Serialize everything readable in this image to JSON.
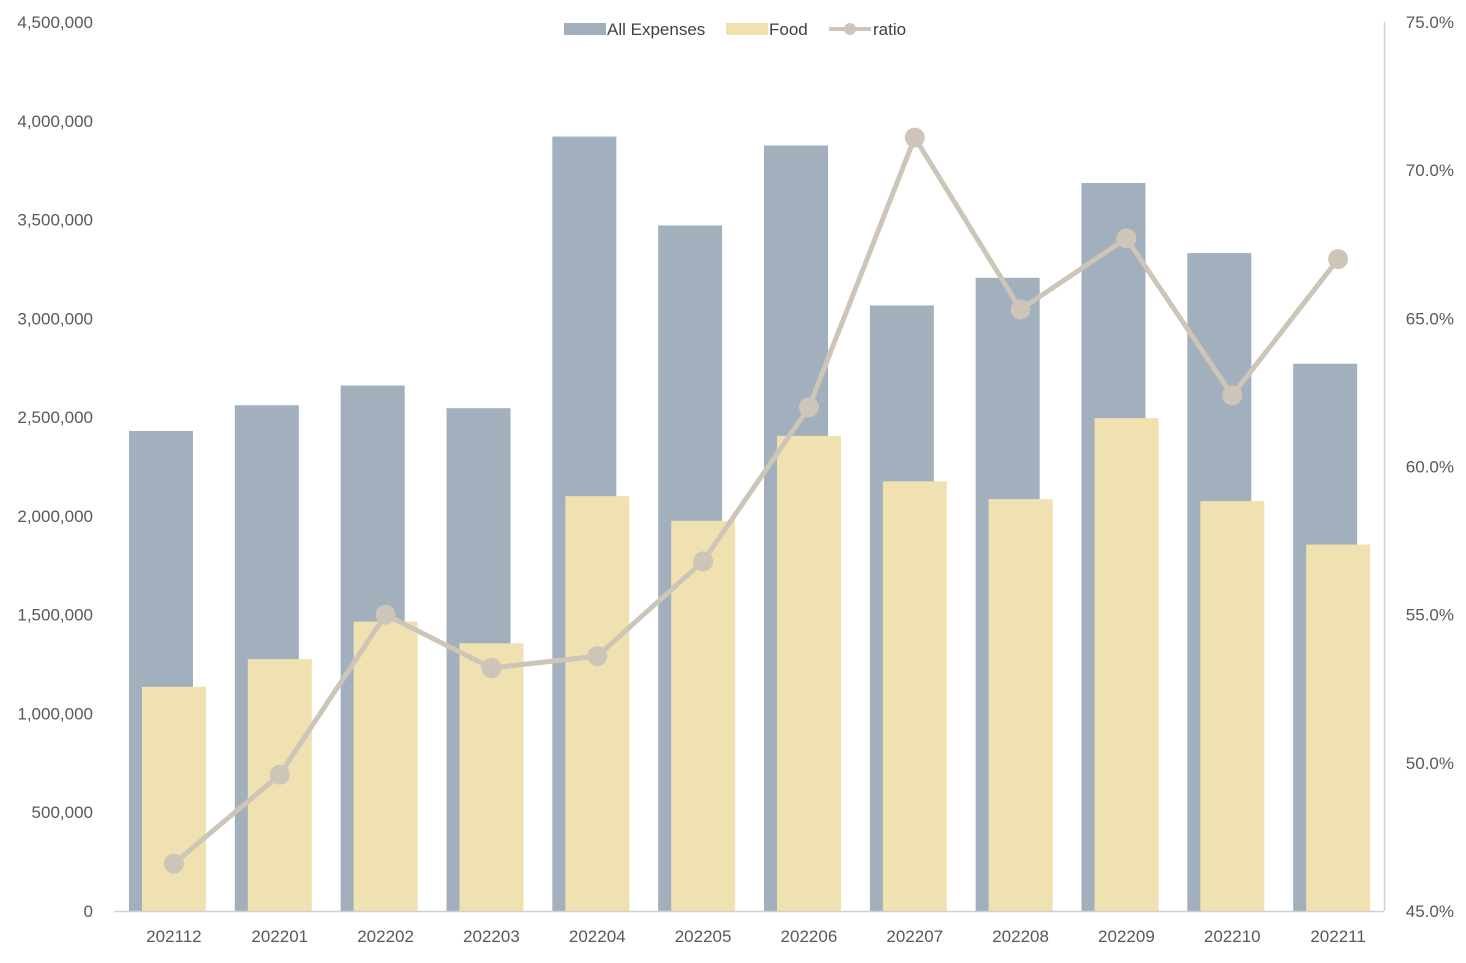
{
  "chart_data": {
    "type": "bar",
    "categories": [
      "202112",
      "202201",
      "202202",
      "202203",
      "202204",
      "202205",
      "202206",
      "202207",
      "202208",
      "202209",
      "202210",
      "202211"
    ],
    "series": [
      {
        "name": "All Expenses",
        "type": "bar",
        "axis": "left",
        "color": "#a2afbd",
        "values": [
          2430000,
          2560000,
          2660000,
          2545000,
          3920000,
          3470000,
          3875000,
          3065000,
          3205000,
          3685000,
          3330000,
          2770000
        ]
      },
      {
        "name": "Food",
        "type": "bar",
        "axis": "left",
        "color": "#efe1b0",
        "values": [
          1135000,
          1275000,
          1465000,
          1355000,
          2100000,
          1975000,
          2405000,
          2175000,
          2085000,
          2495000,
          2075000,
          1855000
        ]
      },
      {
        "name": "ratio",
        "type": "line",
        "axis": "right",
        "color": "#cdc5b8",
        "values": [
          0.466,
          0.496,
          0.55,
          0.532,
          0.536,
          0.568,
          0.62,
          0.711,
          0.653,
          0.677,
          0.624,
          0.67
        ]
      }
    ],
    "y_left": {
      "min": 0,
      "max": 4500000,
      "ticks": [
        0,
        500000,
        1000000,
        1500000,
        2000000,
        2500000,
        3000000,
        3500000,
        4000000,
        4500000
      ],
      "tick_labels": [
        "0",
        "500,000",
        "1,000,000",
        "1,500,000",
        "2,000,000",
        "2,500,000",
        "3,000,000",
        "3,500,000",
        "4,000,000",
        "4,500,000"
      ]
    },
    "y_right": {
      "min": 0.45,
      "max": 0.75,
      "ticks": [
        0.45,
        0.5,
        0.55,
        0.6,
        0.65,
        0.7,
        0.75
      ],
      "tick_labels": [
        "45.0%",
        "50.0%",
        "55.0%",
        "60.0%",
        "65.0%",
        "70.0%",
        "75.0%"
      ]
    },
    "title": "",
    "xlabel": "",
    "ylabel": "",
    "grid": false,
    "legend_position": "top-center",
    "axis_color": "#d0d0d0"
  }
}
